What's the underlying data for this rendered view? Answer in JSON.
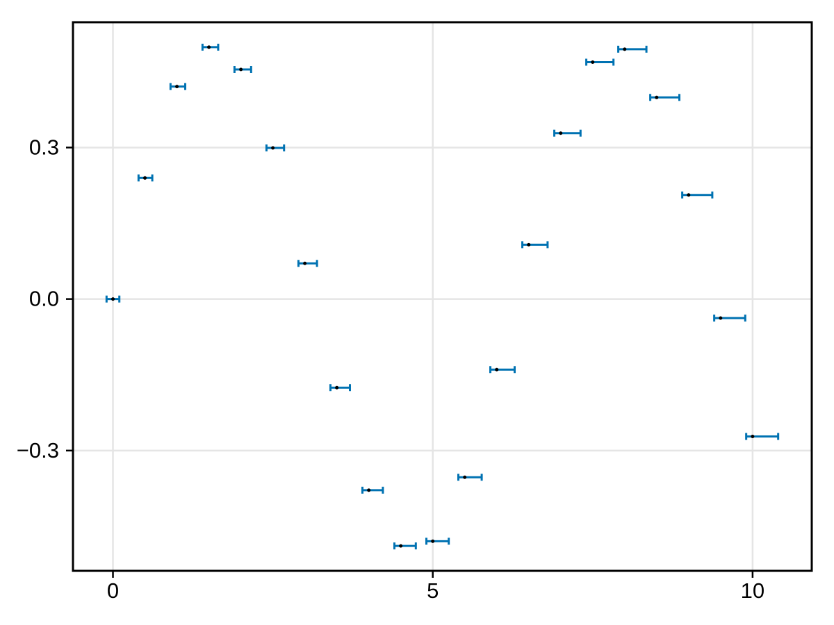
{
  "figure": {
    "background_color": "#ffffff",
    "title": ""
  },
  "chart_data": {
    "type": "scatter",
    "title": "",
    "xlabel": "",
    "ylabel": "",
    "x": [
      0,
      0.5,
      1,
      1.5,
      2,
      2.5,
      3,
      3.5,
      4,
      4.5,
      5,
      5.5,
      6,
      6.5,
      7,
      7.5,
      8,
      8.5,
      9,
      9.5,
      10
    ],
    "y": [
      0.0,
      0.2397,
      0.4207,
      0.4987,
      0.4546,
      0.2992,
      0.0706,
      -0.1754,
      -0.3784,
      -0.4888,
      -0.4795,
      -0.3528,
      -0.1397,
      0.1076,
      0.3285,
      0.469,
      0.4947,
      0.3992,
      0.2061,
      -0.0376,
      -0.272
    ],
    "xerr_low": [
      0.1,
      0.1,
      0.1,
      0.1,
      0.1,
      0.1,
      0.1,
      0.1,
      0.1,
      0.1,
      0.1,
      0.1,
      0.1,
      0.1,
      0.1,
      0.1,
      0.1,
      0.1,
      0.1,
      0.1,
      0.1
    ],
    "xerr_high": [
      0.1,
      0.115,
      0.13,
      0.145,
      0.16,
      0.175,
      0.19,
      0.205,
      0.22,
      0.235,
      0.25,
      0.265,
      0.28,
      0.295,
      0.31,
      0.325,
      0.34,
      0.355,
      0.37,
      0.385,
      0.4
    ],
    "xlim": [
      -0.625,
      10.925
    ],
    "ylim": [
      -0.5381,
      0.5481
    ],
    "x_ticks": {
      "values": [
        0,
        5,
        10
      ],
      "labels": [
        "0",
        "5",
        "10"
      ]
    },
    "y_ticks": {
      "values": [
        0.3,
        0.0,
        -0.3
      ],
      "labels": [
        "0.3",
        "0.0",
        "−0.3"
      ]
    },
    "grid": true,
    "legend": "none",
    "colors": {
      "errorbar": "#0072B2",
      "marker": "#000000",
      "grid": "#e5e5e5",
      "spine": "#000000",
      "tick": "#000000",
      "background": "#ffffff"
    }
  }
}
